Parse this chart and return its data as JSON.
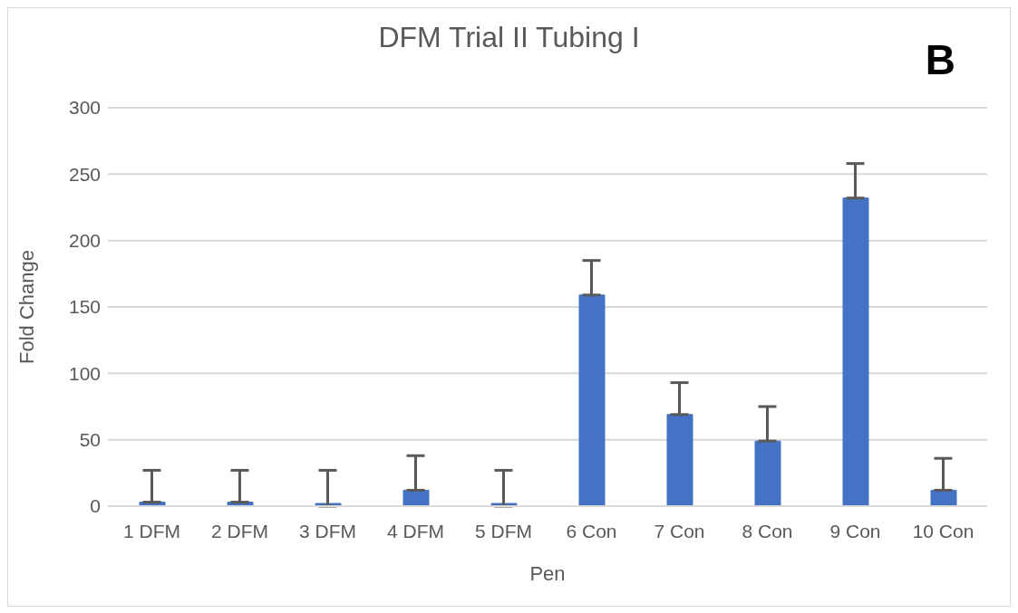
{
  "chart_data": {
    "type": "bar",
    "title": "DFM Trial II Tubing I",
    "xlabel": "Pen",
    "ylabel": "Fold Change",
    "annotations": [
      "B"
    ],
    "categories": [
      "1 DFM",
      "2 DFM",
      "3 DFM",
      "4 DFM",
      "5 DFM",
      "6 Con",
      "7 Con",
      "8 Con",
      "9 Con",
      "10 Con"
    ],
    "values": [
      3,
      3,
      0,
      12,
      0,
      159,
      69,
      49,
      232,
      12
    ],
    "errors": [
      [
        3,
        27
      ],
      [
        3,
        27
      ],
      [
        0,
        27
      ],
      [
        12,
        38
      ],
      [
        0,
        27
      ],
      [
        159,
        185
      ],
      [
        69,
        93
      ],
      [
        49,
        75
      ],
      [
        232,
        258
      ],
      [
        12,
        36
      ]
    ],
    "color": "#4472c4",
    "ylim": [
      0,
      300
    ],
    "yticks": [
      0,
      50,
      100,
      150,
      200,
      250,
      300
    ],
    "grid": "y",
    "legend": false
  }
}
